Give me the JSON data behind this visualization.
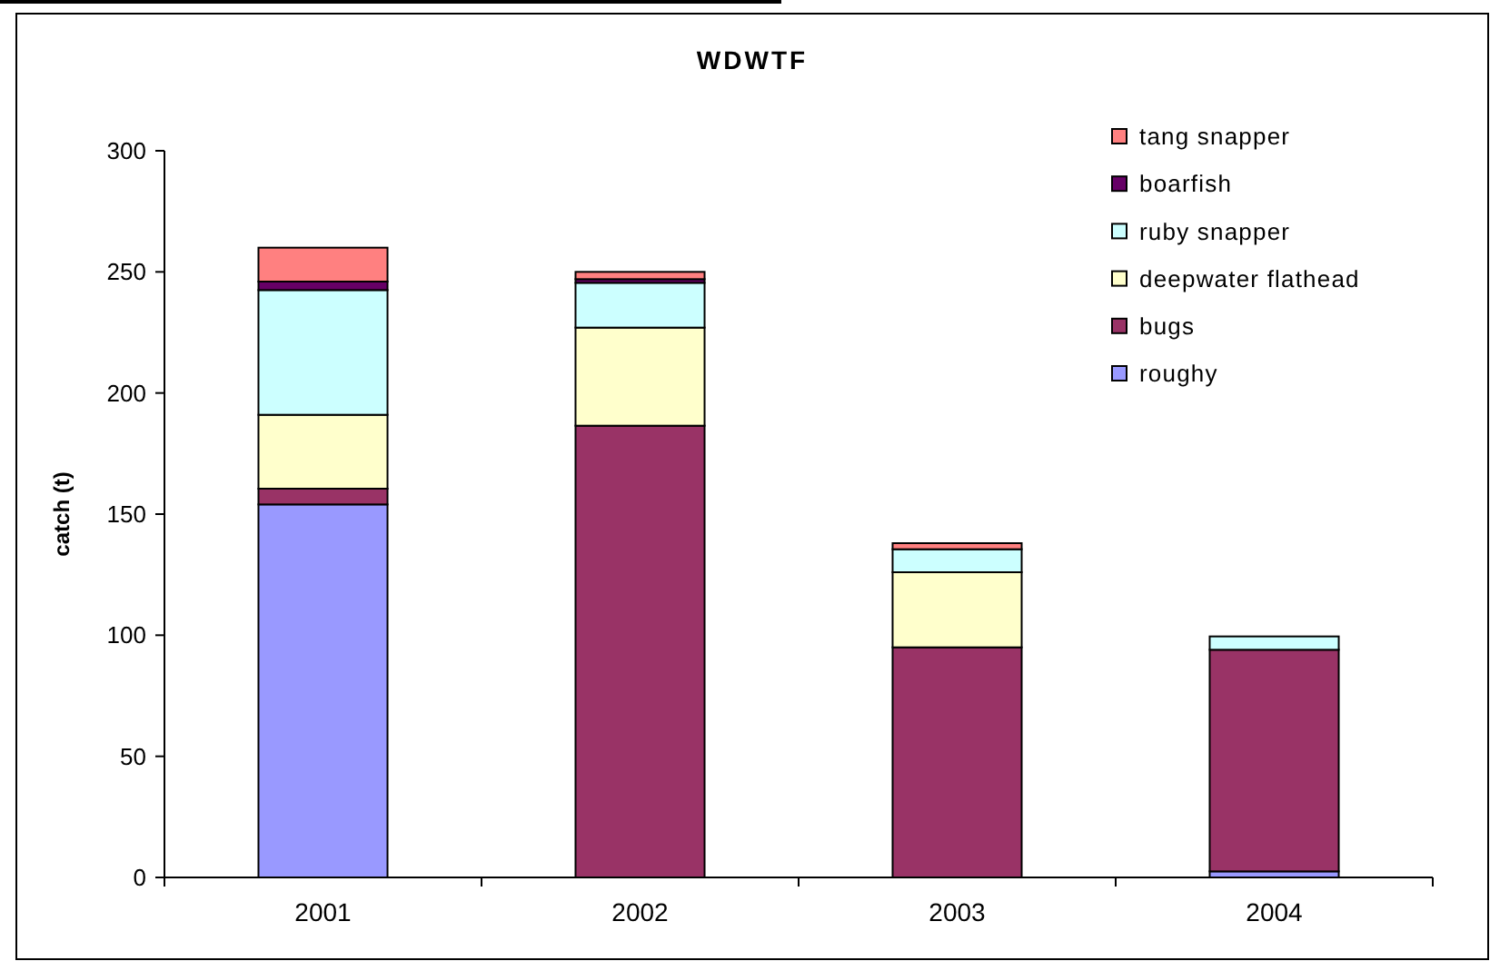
{
  "chart_data": {
    "type": "bar",
    "title": "WDWTF",
    "ylabel": "catch (t)",
    "categories": [
      "2001",
      "2002",
      "2003",
      "2004"
    ],
    "stacked": true,
    "series": [
      {
        "name": "roughy",
        "color": "#9999ff",
        "values": [
          154,
          0,
          0,
          2.5
        ]
      },
      {
        "name": "bugs",
        "color": "#993366",
        "values": [
          6.5,
          186.5,
          95,
          91.5
        ]
      },
      {
        "name": "deepwater flathead",
        "color": "#ffffcc",
        "values": [
          30.5,
          40.5,
          31,
          0
        ]
      },
      {
        "name": "ruby snapper",
        "color": "#ccffff",
        "values": [
          51.5,
          18.5,
          9.5,
          5.5
        ]
      },
      {
        "name": "boarfish",
        "color": "#660066",
        "values": [
          3.5,
          1.5,
          0,
          0
        ]
      },
      {
        "name": "tang snapper",
        "color": "#ff8080",
        "values": [
          14,
          3,
          2.5,
          0
        ]
      }
    ],
    "ylim": [
      0,
      300
    ],
    "yticks": [
      0,
      50,
      100,
      150,
      200,
      250,
      300
    ],
    "legend": "top right"
  }
}
